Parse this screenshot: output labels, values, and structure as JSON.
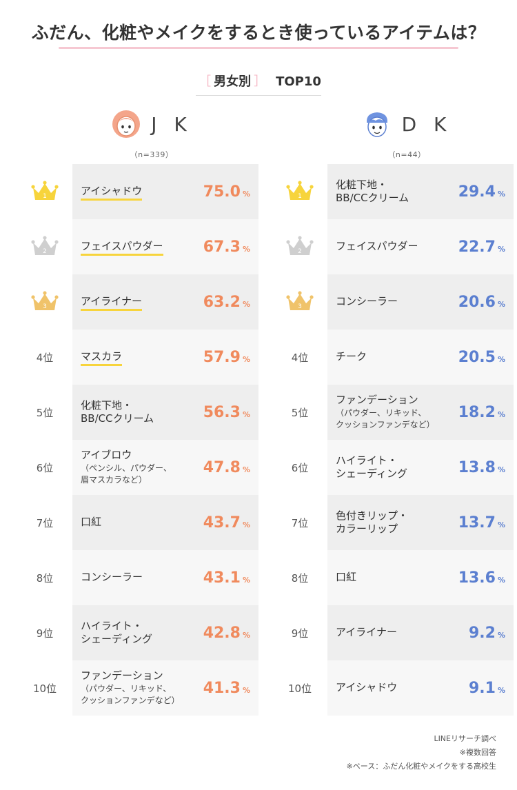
{
  "title": "ふだん、化粧やメイクをするとき使っているアイテムは？",
  "subtitle": {
    "open": "［",
    "text": "男女別",
    "close": "］",
    "top": "TOP10"
  },
  "colors": {
    "jk": "#f08a5d",
    "dk": "#5b7fd0",
    "gold": "#f7d43c",
    "silver": "#cfcfcf",
    "bronze": "#f0c36a"
  },
  "jk": {
    "label": "J K",
    "n": "（n=339）"
  },
  "dk": {
    "label": "D K",
    "n": "（n=44）"
  },
  "pct_unit": "%",
  "ranks": [
    "1",
    "2",
    "3",
    "4位",
    "5位",
    "6位",
    "7位",
    "8位",
    "9位",
    "10位"
  ],
  "chart_data": [
    {
      "type": "table",
      "name": "JK",
      "title": "ふだん、化粧やメイクをするとき使っているアイテムは？ 男女別 TOP10 — JK (n=339)",
      "items": [
        {
          "rank": 1,
          "label": "アイシャドウ",
          "note": "",
          "value": 75.0
        },
        {
          "rank": 2,
          "label": "フェイスパウダー",
          "note": "",
          "value": 67.3
        },
        {
          "rank": 3,
          "label": "アイライナー",
          "note": "",
          "value": 63.2
        },
        {
          "rank": 4,
          "label": "マスカラ",
          "note": "",
          "value": 57.9
        },
        {
          "rank": 5,
          "label": "化粧下地・",
          "label2": "BB/CCクリーム",
          "note": "",
          "value": 56.3
        },
        {
          "rank": 6,
          "label": "アイブロウ",
          "note": "（ペンシル、パウダー、",
          "note2": "眉マスカラなど）",
          "value": 47.8
        },
        {
          "rank": 7,
          "label": "口紅",
          "note": "",
          "value": 43.7
        },
        {
          "rank": 8,
          "label": "コンシーラー",
          "note": "",
          "value": 43.1
        },
        {
          "rank": 9,
          "label": "ハイライト・",
          "label2": "シェーディング",
          "note": "",
          "value": 42.8
        },
        {
          "rank": 10,
          "label": "ファンデーション",
          "note": "（パウダー、リキッド、",
          "note2": "クッションファンデなど）",
          "value": 41.3
        }
      ]
    },
    {
      "type": "table",
      "name": "DK",
      "title": "ふだん、化粧やメイクをするとき使っているアイテムは？ 男女別 TOP10 — DK (n=44)",
      "items": [
        {
          "rank": 1,
          "label": "化粧下地・",
          "label2": "BB/CCクリーム",
          "note": "",
          "value": 29.4
        },
        {
          "rank": 2,
          "label": "フェイスパウダー",
          "note": "",
          "value": 22.7
        },
        {
          "rank": 3,
          "label": "コンシーラー",
          "note": "",
          "value": 20.6
        },
        {
          "rank": 4,
          "label": "チーク",
          "note": "",
          "value": 20.5
        },
        {
          "rank": 5,
          "label": "ファンデーション",
          "note": "（パウダー、リキッド、",
          "note2": "クッションファンデなど）",
          "value": 18.2
        },
        {
          "rank": 6,
          "label": "ハイライト・",
          "label2": "シェーディング",
          "note": "",
          "value": 13.8
        },
        {
          "rank": 7,
          "label": "色付きリップ・",
          "label2": "カラーリップ",
          "note": "",
          "value": 13.7
        },
        {
          "rank": 8,
          "label": "口紅",
          "note": "",
          "value": 13.6
        },
        {
          "rank": 9,
          "label": "アイライナー",
          "note": "",
          "value": 9.2
        },
        {
          "rank": 10,
          "label": "アイシャドウ",
          "note": "",
          "value": 9.1
        }
      ]
    }
  ],
  "notes": [
    "LINEリサーチ調べ",
    "※複数回答",
    "※ベース：ふだん化粧やメイクをする高校生"
  ]
}
